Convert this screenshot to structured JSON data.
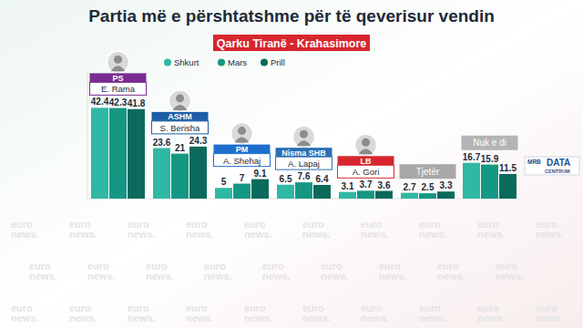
{
  "chart_data": {
    "type": "bar",
    "title": "Partia më e përshtatshme për të qeverisur vendin",
    "subtitle": "Qarku Tiranë - Krahasimore",
    "categories": [
      "PS\nE. Rama",
      "ASHM\nS. Berisha",
      "PM\nA. Shehaj",
      "Nisma SHB\nA. Lapaj",
      "LB\nA. Gori",
      "Tjetër",
      "Nuk e di"
    ],
    "series": [
      {
        "name": "Shkurt",
        "color": "#2fb8a3",
        "values": [
          42.4,
          23.6,
          5,
          6.5,
          3.1,
          2.7,
          16.7
        ]
      },
      {
        "name": "Mars",
        "color": "#159883",
        "values": [
          42.3,
          21,
          7,
          7.6,
          3.7,
          2.5,
          15.9
        ]
      },
      {
        "name": "Prill",
        "color": "#0b6a5c",
        "values": [
          41.8,
          24.3,
          9.1,
          6.4,
          3.6,
          3.3,
          11.5
        ]
      }
    ],
    "ylim": [
      0,
      60
    ],
    "yticks": [],
    "tick_labels": false,
    "data_labels": true,
    "grid": false,
    "legend": "top",
    "annotations": [
      "euro\nnews.",
      "MRB",
      "DATA\nCENTRUM"
    ]
  }
}
